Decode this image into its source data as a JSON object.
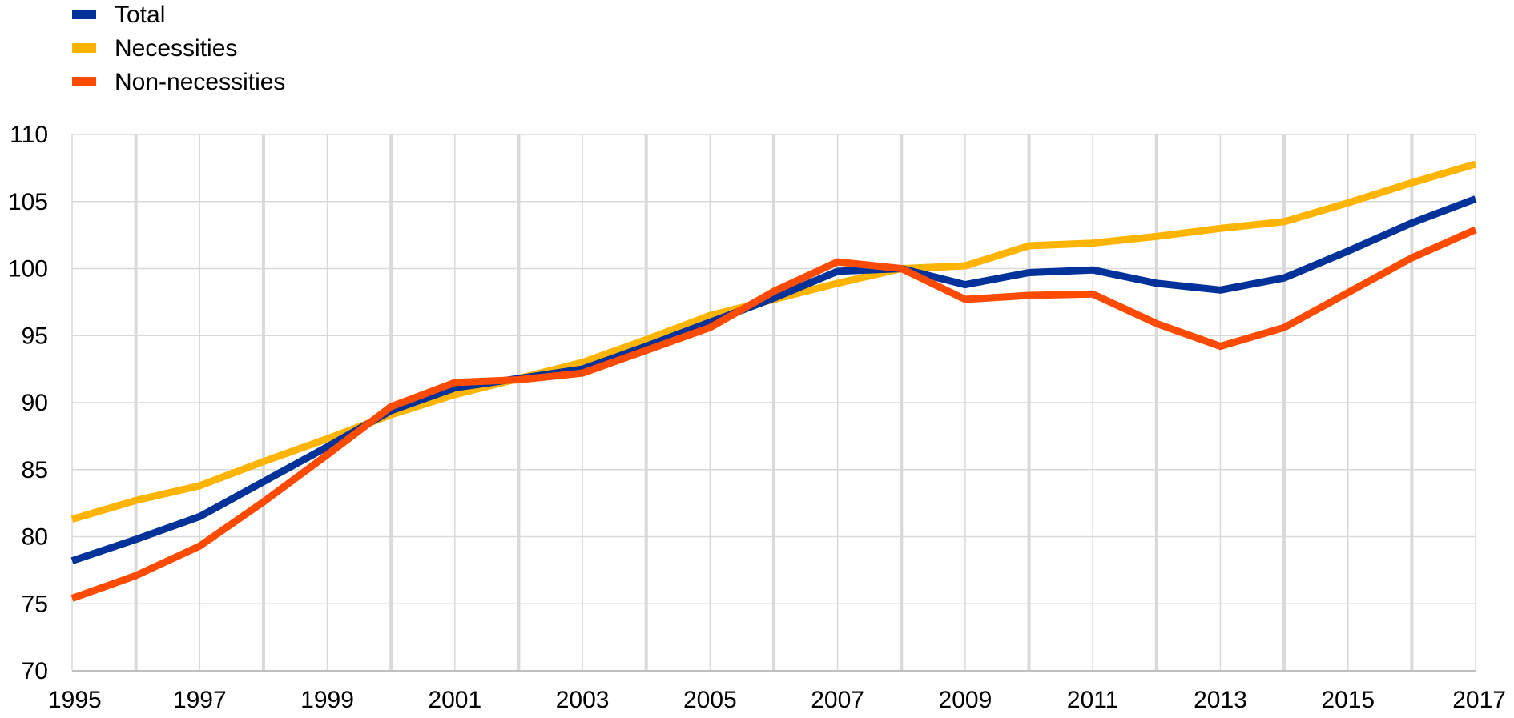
{
  "colors": {
    "total": "#003299",
    "necessities": "#FFB400",
    "non_necessities": "#FF4B00",
    "gridline": "#D9D9D9",
    "axis": "#BFBFBF"
  },
  "chart_data": {
    "type": "line",
    "title": "",
    "xlabel": "",
    "ylabel": "",
    "x": [
      1995,
      1996,
      1997,
      1998,
      1999,
      2000,
      2001,
      2002,
      2003,
      2004,
      2005,
      2006,
      2007,
      2008,
      2009,
      2010,
      2011,
      2012,
      2013,
      2014,
      2015,
      2016,
      2017
    ],
    "x_tick_labels": [
      "1995",
      "1997",
      "1999",
      "2001",
      "2003",
      "2005",
      "2007",
      "2009",
      "2011",
      "2013",
      "2015",
      "2017"
    ],
    "y_tick_labels": [
      "70",
      "75",
      "80",
      "85",
      "90",
      "95",
      "100",
      "105",
      "110"
    ],
    "ylim": [
      70,
      110
    ],
    "xlim": [
      1995,
      2017
    ],
    "grid": "vertical lines at every year, horizontal lines at every 5 units",
    "legend_position": "top-left",
    "series": [
      {
        "name": "Total",
        "color": "#003299",
        "values": [
          78.2,
          79.8,
          81.5,
          84.1,
          86.7,
          89.4,
          91.1,
          91.8,
          92.5,
          94.2,
          96.0,
          97.8,
          99.8,
          100.0,
          98.8,
          99.7,
          99.9,
          98.9,
          98.4,
          99.3,
          101.3,
          103.4,
          105.2
        ]
      },
      {
        "name": "Necessities",
        "color": "#FFB400",
        "values": [
          81.3,
          82.7,
          83.8,
          85.6,
          87.3,
          89.1,
          90.6,
          91.8,
          93.0,
          94.7,
          96.5,
          97.7,
          98.9,
          100.0,
          100.2,
          101.7,
          101.9,
          102.4,
          103.0,
          103.5,
          104.9,
          106.4,
          107.8
        ]
      },
      {
        "name": "Non-necessities",
        "color": "#FF4B00",
        "values": [
          75.4,
          77.1,
          79.3,
          82.6,
          86.1,
          89.7,
          91.5,
          91.7,
          92.2,
          93.9,
          95.6,
          98.3,
          100.5,
          100.0,
          97.7,
          98.0,
          98.1,
          95.9,
          94.2,
          95.6,
          98.2,
          100.8,
          102.9
        ]
      }
    ]
  }
}
